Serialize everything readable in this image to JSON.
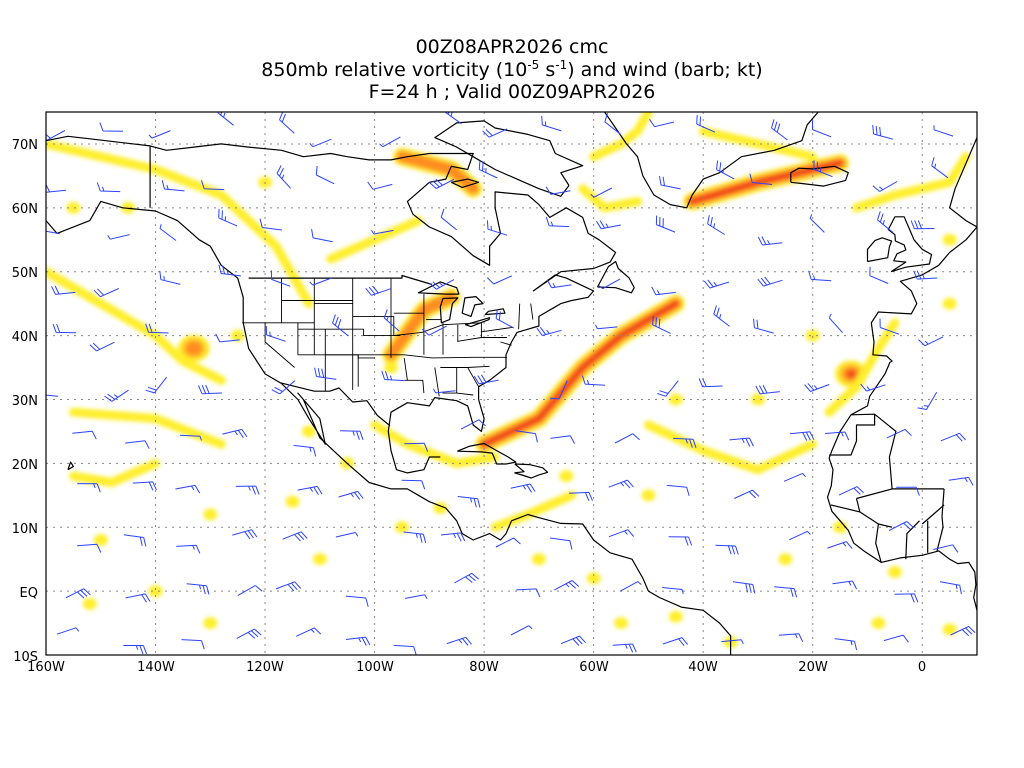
{
  "title": {
    "line1": "00Z08APR2026 cmc",
    "line2_pre": "850mb relative vorticity (10",
    "line2_exp1": "-5",
    "line2_mid": " s",
    "line2_exp2": "-1",
    "line2_post": ") and wind (barb; kt)",
    "line3": "F=24 h ; Valid 00Z09APR2026"
  },
  "axes": {
    "lon_labels": [
      "160W",
      "140W",
      "120W",
      "100W",
      "80W",
      "60W",
      "40W",
      "20W",
      "0"
    ],
    "lat_labels": [
      "70N",
      "60N",
      "50N",
      "40N",
      "30N",
      "20N",
      "10N",
      "EQ",
      "10S"
    ],
    "lon_range": [
      -160,
      10
    ],
    "lat_range": [
      -10,
      75
    ]
  },
  "colors": {
    "shade_light": "#ffee2c",
    "shade_mid": "#ffc62a",
    "shade_orange": "#ff8c20",
    "shade_red": "#f0461e",
    "barb": "#2a43ff",
    "coast": "#000000"
  },
  "chart_data": {
    "type": "heatmap",
    "field": "850mb relative vorticity",
    "overlay": "wind barbs (kt)",
    "regions": [
      {
        "name": "Atlantic front",
        "path_lonlat": [
          [
            -80,
            23
          ],
          [
            -70,
            27
          ],
          [
            -62,
            35
          ],
          [
            -55,
            40
          ],
          [
            -45,
            45
          ]
        ],
        "max_level": 4
      },
      {
        "name": "Great Lakes",
        "path_lonlat": [
          [
            -97,
            37
          ],
          [
            -91,
            44
          ],
          [
            -86,
            46
          ]
        ],
        "max_level": 3
      },
      {
        "name": "Hudson Bay",
        "path_lonlat": [
          [
            -95,
            68
          ],
          [
            -86,
            66
          ],
          [
            -82,
            63
          ]
        ],
        "max_level": 3
      },
      {
        "name": "Iceland low",
        "path_lonlat": [
          [
            -42,
            61
          ],
          [
            -30,
            64
          ],
          [
            -15,
            67
          ]
        ],
        "max_level": 4
      },
      {
        "name": "Canary low",
        "center_lonlat": [
          -13,
          34
        ],
        "max_level": 4
      },
      {
        "name": "NE Pacific low",
        "center_lonlat": [
          -133,
          38
        ],
        "max_level": 3
      }
    ]
  }
}
